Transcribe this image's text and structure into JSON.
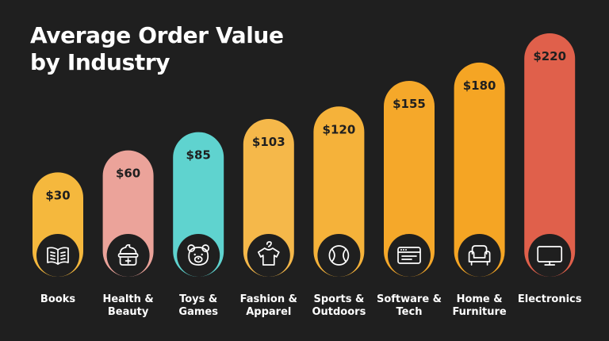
{
  "chart_data": {
    "type": "bar",
    "title_lines": [
      "Average Order Value",
      "by Industry"
    ],
    "xlabel": "",
    "ylabel": "",
    "ylim": [
      0,
      220
    ],
    "grid": false,
    "categories": [
      {
        "label_lines": [
          "Books"
        ],
        "value": 30,
        "value_label": "$30",
        "color": "#f5b83d",
        "icon": "book-icon"
      },
      {
        "label_lines": [
          "Health &",
          "Beauty"
        ],
        "value": 60,
        "value_label": "$60",
        "color": "#eba39a",
        "icon": "cream-jar-icon"
      },
      {
        "label_lines": [
          "Toys &",
          "Games"
        ],
        "value": 85,
        "value_label": "$85",
        "color": "#5fd3cf",
        "icon": "teddy-bear-icon"
      },
      {
        "label_lines": [
          "Fashion &",
          "Apparel"
        ],
        "value": 103,
        "value_label": "$103",
        "color": "#f5b84a",
        "icon": "shirt-hanger-icon"
      },
      {
        "label_lines": [
          "Sports &",
          "Outdoors"
        ],
        "value": 120,
        "value_label": "$120",
        "color": "#f5b23a",
        "icon": "tennis-ball-icon"
      },
      {
        "label_lines": [
          "Software &",
          "Tech"
        ],
        "value": 155,
        "value_label": "$155",
        "color": "#f5a82a",
        "icon": "browser-window-icon"
      },
      {
        "label_lines": [
          "Home &",
          "Furniture"
        ],
        "value": 180,
        "value_label": "$180",
        "color": "#f5a524",
        "icon": "armchair-icon"
      },
      {
        "label_lines": [
          "Electronics"
        ],
        "value": 220,
        "value_label": "$220",
        "color": "#e0604b",
        "icon": "monitor-icon"
      }
    ]
  }
}
